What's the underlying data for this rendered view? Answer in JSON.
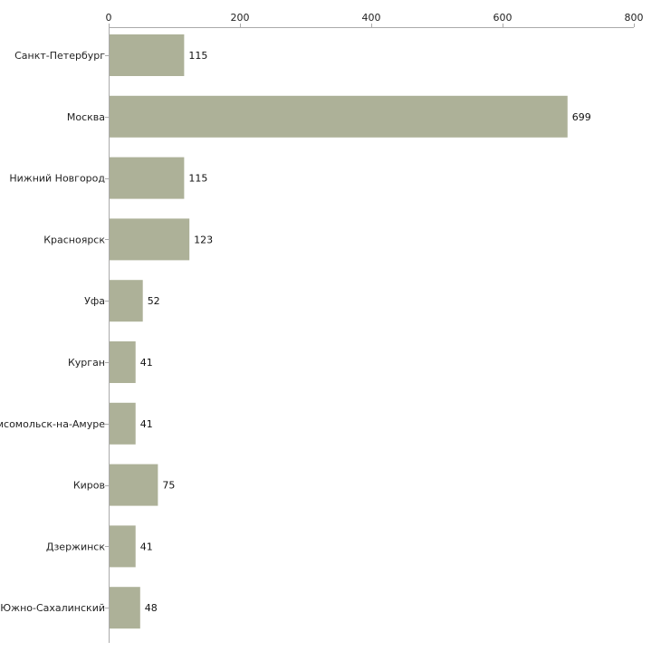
{
  "chart_data": {
    "type": "bar",
    "orientation": "horizontal",
    "title": "",
    "xlabel": "",
    "ylabel": "",
    "xlim": [
      0,
      800
    ],
    "x_ticks": [
      0,
      200,
      400,
      600,
      800
    ],
    "x_axis_position": "top",
    "grid": false,
    "legend": "none",
    "categories": [
      "Санкт-Петербург",
      "Москва",
      "Нижний Новгород",
      "Красноярск",
      "Уфа",
      "Курган",
      "Комсомольск-на-Амуре",
      "Киров",
      "Дзержинск",
      "Южно-Сахалинский"
    ],
    "values": [
      115,
      699,
      115,
      123,
      52,
      41,
      41,
      75,
      41,
      48
    ],
    "colors": {
      "bar": "#adb198",
      "axis": "#aaaaaa",
      "text": "#222222",
      "background": "#ffffff"
    }
  }
}
